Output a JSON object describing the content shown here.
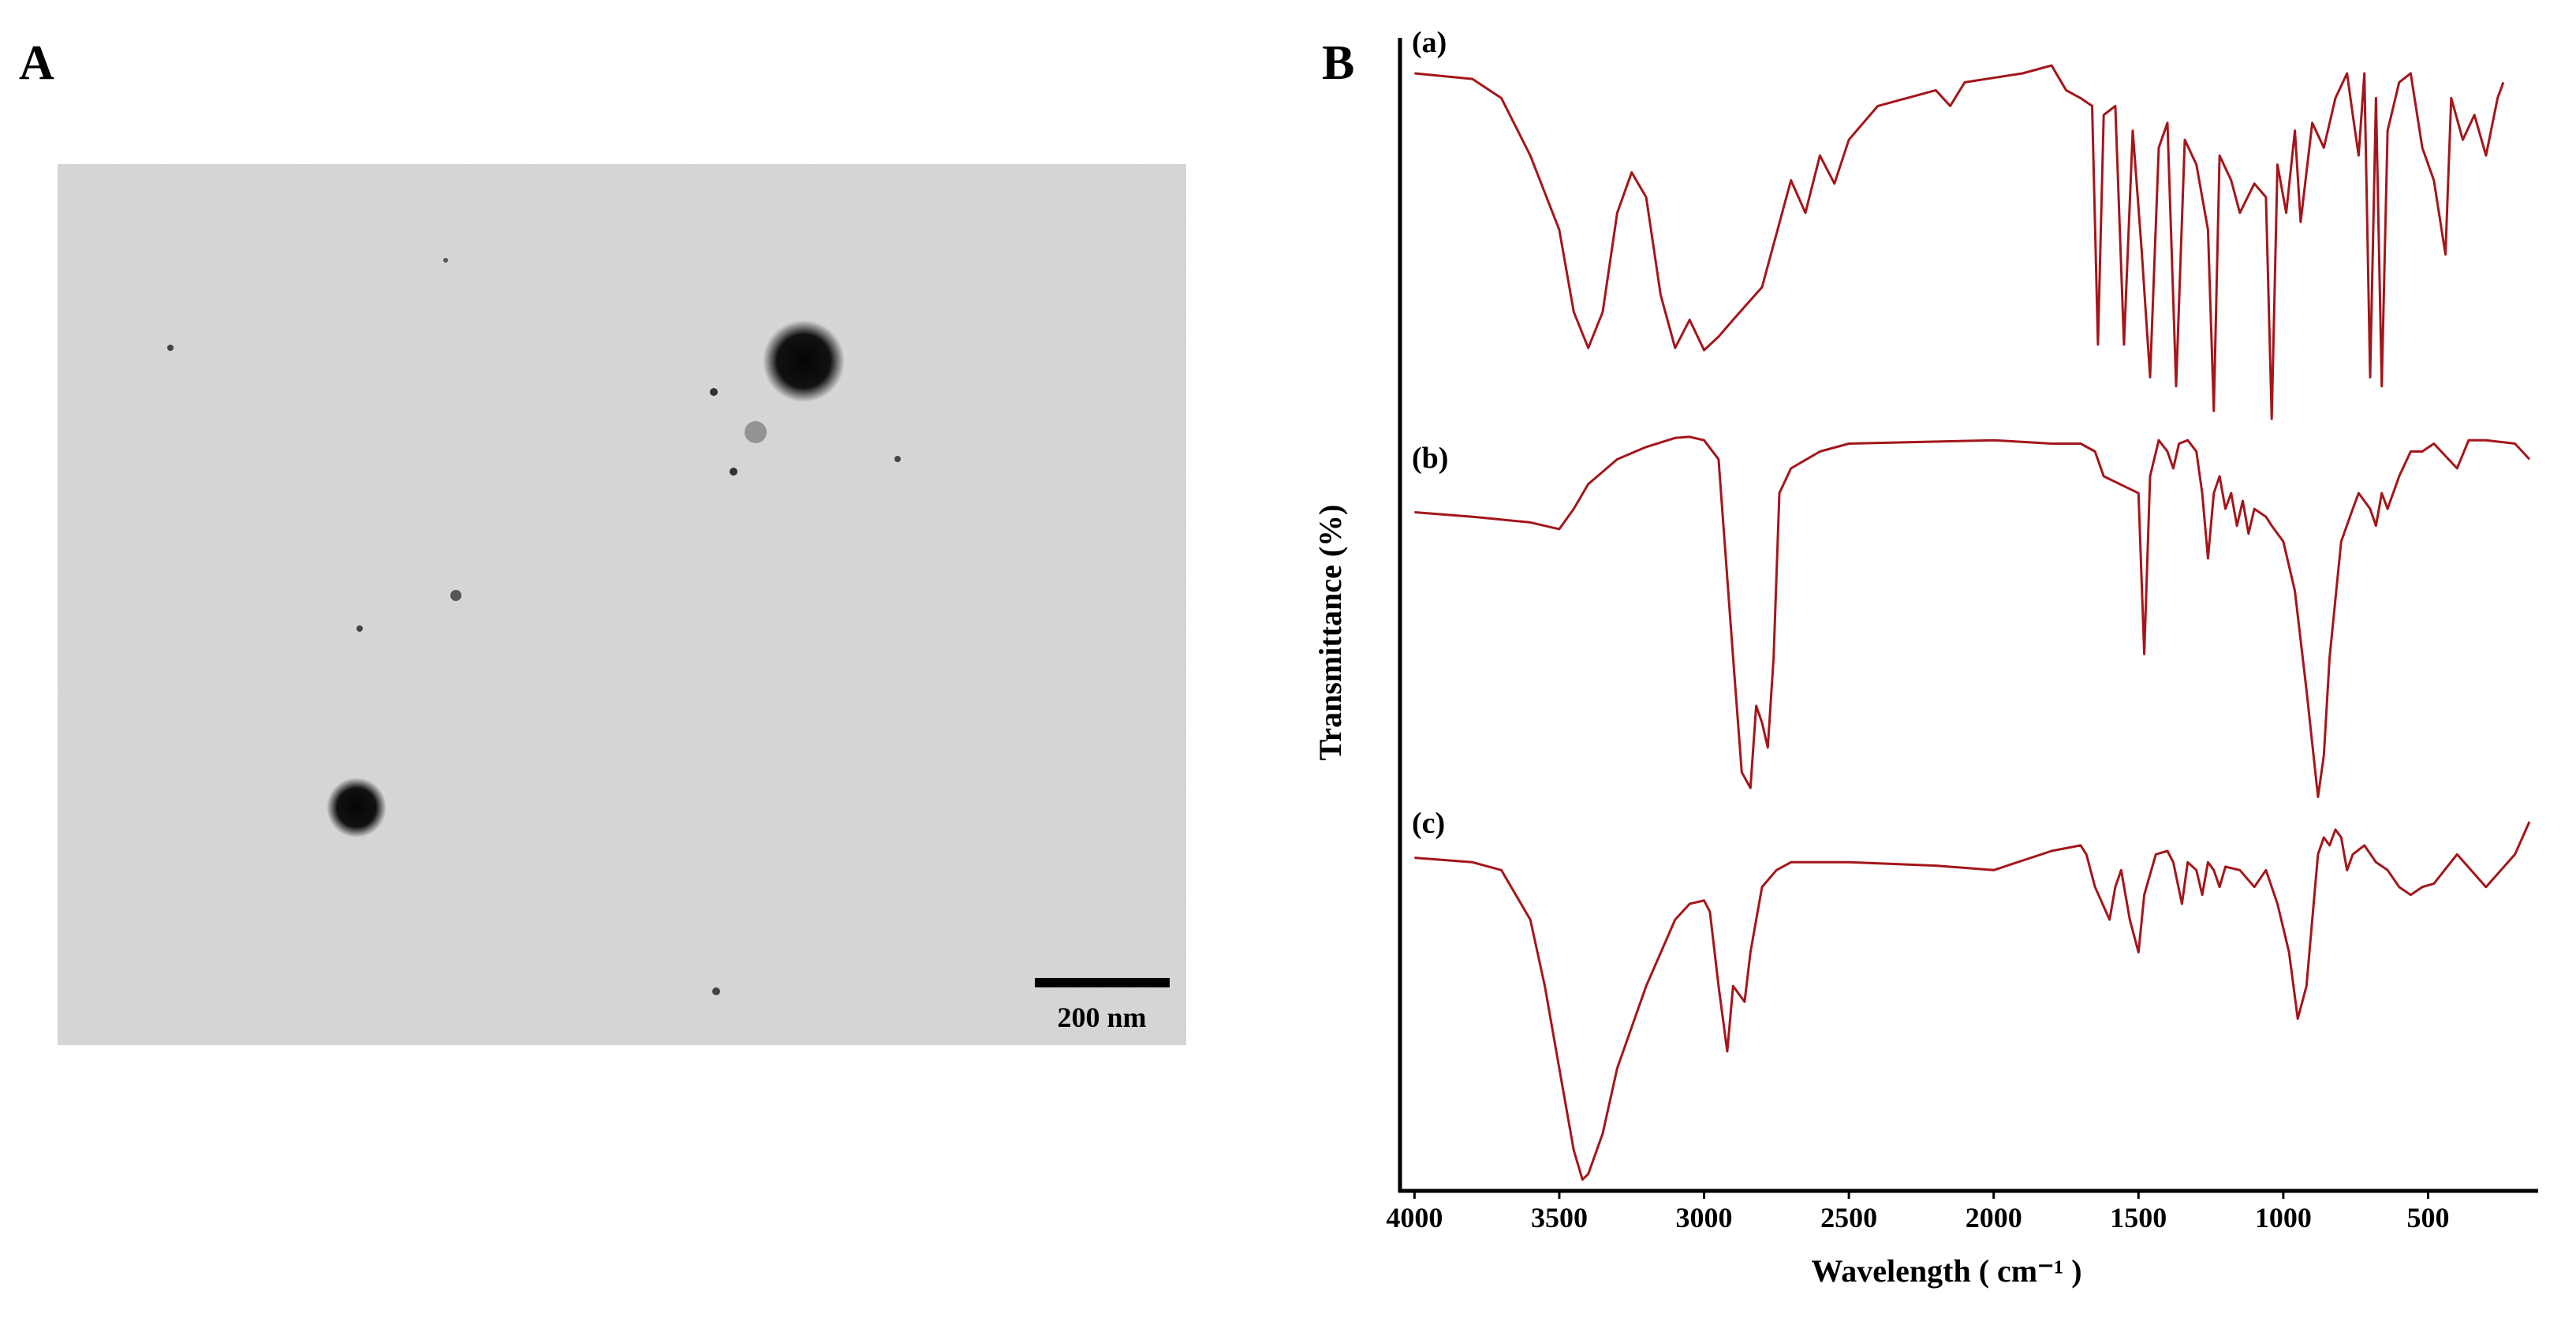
{
  "panel_a": {
    "label": "A",
    "scale_bar": "200 nm"
  },
  "chart_data": {
    "type": "line",
    "panel_label": "B",
    "xlabel": "Wavelength ( cm⁻¹ )",
    "ylabel": "Transmittance (%)",
    "xlim": [
      4050,
      120
    ],
    "ylim": [
      0,
      100
    ],
    "xticks": [
      4000,
      3500,
      3000,
      2500,
      2000,
      1500,
      1000,
      500
    ],
    "series": [
      {
        "name": "(a)",
        "color": "#a3161b",
        "x": [
          4000,
          3800,
          3700,
          3600,
          3500,
          3450,
          3400,
          3350,
          3300,
          3250,
          3200,
          3150,
          3100,
          3050,
          3000,
          2950,
          2900,
          2800,
          2700,
          2650,
          2600,
          2550,
          2500,
          2400,
          2200,
          2150,
          2100,
          1900,
          1800,
          1750,
          1700,
          1660,
          1640,
          1620,
          1580,
          1550,
          1520,
          1490,
          1460,
          1430,
          1400,
          1370,
          1340,
          1300,
          1260,
          1240,
          1220,
          1180,
          1150,
          1100,
          1060,
          1040,
          1020,
          990,
          960,
          940,
          900,
          860,
          820,
          780,
          760,
          740,
          720,
          700,
          680,
          660,
          640,
          600,
          560,
          520,
          480,
          440,
          420,
          380,
          340,
          300,
          260,
          240
        ],
        "values": [
          99.3,
          98.8,
          97.1,
          92.0,
          85.4,
          78.1,
          74.9,
          78.1,
          86.9,
          90.5,
          88.3,
          79.6,
          74.9,
          77.4,
          74.7,
          75.9,
          77.4,
          80.3,
          89.8,
          86.9,
          92.0,
          89.5,
          93.4,
          96.4,
          97.8,
          96.4,
          98.5,
          99.3,
          100,
          97.8,
          97.1,
          96.4,
          75.2,
          95.6,
          96.4,
          75.2,
          94.2,
          83.9,
          72.3,
          92.7,
          94.9,
          71.5,
          93.4,
          91.2,
          85.4,
          69.3,
          92.0,
          89.8,
          86.9,
          89.5,
          88.3,
          68.6,
          91.2,
          86.9,
          94.2,
          86.1,
          94.9,
          92.7,
          97.1,
          99.3,
          95.6,
          92.0,
          99.3,
          72.3,
          97.1,
          71.5,
          94.2,
          98.5,
          99.3,
          92.7,
          89.8,
          83.2,
          97.1,
          93.4,
          95.6,
          92.0,
          97.1,
          98.5
        ]
      },
      {
        "name": "(b)",
        "color": "#a3161b",
        "x": [
          4000,
          3800,
          3600,
          3500,
          3450,
          3400,
          3300,
          3200,
          3100,
          3050,
          3000,
          2950,
          2900,
          2870,
          2840,
          2820,
          2800,
          2780,
          2760,
          2740,
          2700,
          2600,
          2500,
          2000,
          1800,
          1750,
          1700,
          1650,
          1620,
          1500,
          1480,
          1460,
          1430,
          1400,
          1380,
          1360,
          1330,
          1300,
          1280,
          1260,
          1240,
          1220,
          1200,
          1180,
          1160,
          1140,
          1120,
          1100,
          1060,
          1040,
          1000,
          960,
          920,
          880,
          860,
          840,
          800,
          760,
          740,
          700,
          680,
          660,
          640,
          600,
          560,
          520,
          480,
          400,
          360,
          300,
          200,
          150
        ],
        "values": [
          60.3,
          59.9,
          59.4,
          58.8,
          60.6,
          62.8,
          65.0,
          66.1,
          66.9,
          67.0,
          66.7,
          65.0,
          47.4,
          37.2,
          35.8,
          43.1,
          41.6,
          39.4,
          47.4,
          62.0,
          64.2,
          65.7,
          66.4,
          66.7,
          66.4,
          66.4,
          66.4,
          65.7,
          63.5,
          62.0,
          47.7,
          63.5,
          66.7,
          65.7,
          64.2,
          66.4,
          66.7,
          65.7,
          62.0,
          56.2,
          62.0,
          63.5,
          60.6,
          62.0,
          59.1,
          61.3,
          58.4,
          60.6,
          59.9,
          59.1,
          57.7,
          53.3,
          44.5,
          35.0,
          38.7,
          47.4,
          57.7,
          60.6,
          62.0,
          60.6,
          59.1,
          62.0,
          60.6,
          63.5,
          65.7,
          65.7,
          66.4,
          64.2,
          66.7,
          66.7,
          66.4,
          65.0
        ]
      },
      {
        "name": "(c)",
        "color": "#a3161b",
        "x": [
          4000,
          3800,
          3700,
          3600,
          3550,
          3500,
          3450,
          3420,
          3400,
          3350,
          3300,
          3200,
          3100,
          3050,
          3000,
          2980,
          2950,
          2920,
          2900,
          2860,
          2840,
          2800,
          2750,
          2700,
          2500,
          2200,
          2000,
          1800,
          1700,
          1680,
          1650,
          1600,
          1580,
          1560,
          1530,
          1500,
          1480,
          1440,
          1400,
          1380,
          1350,
          1330,
          1300,
          1280,
          1260,
          1240,
          1220,
          1200,
          1150,
          1100,
          1060,
          1020,
          980,
          950,
          920,
          900,
          880,
          860,
          840,
          820,
          800,
          780,
          760,
          720,
          680,
          640,
          600,
          560,
          520,
          480,
          400,
          300,
          200,
          150
        ],
        "values": [
          29.6,
          29.2,
          28.5,
          24.1,
          18.2,
          10.9,
          3.6,
          1.0,
          1.5,
          5.1,
          10.9,
          18.2,
          24.1,
          25.5,
          25.8,
          24.8,
          18.2,
          12.4,
          18.2,
          16.8,
          21.2,
          27.0,
          28.5,
          29.2,
          29.2,
          28.9,
          28.5,
          30.2,
          30.7,
          29.9,
          27.0,
          24.1,
          27.0,
          28.5,
          24.1,
          21.2,
          26.3,
          29.9,
          30.2,
          29.2,
          25.5,
          29.2,
          28.5,
          26.3,
          29.2,
          28.5,
          27.0,
          28.8,
          28.5,
          27.0,
          28.5,
          25.5,
          21.2,
          15.3,
          18.2,
          24.1,
          29.9,
          31.4,
          30.7,
          32.1,
          31.4,
          28.5,
          29.9,
          30.7,
          29.2,
          28.5,
          27.0,
          26.3,
          27.0,
          27.3,
          29.9,
          27.0,
          29.9,
          32.8
        ]
      }
    ]
  }
}
